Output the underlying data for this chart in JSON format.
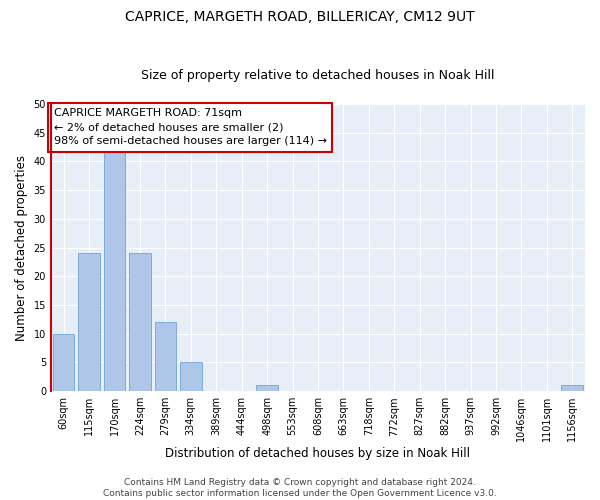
{
  "title1": "CAPRICE, MARGETH ROAD, BILLERICAY, CM12 9UT",
  "title2": "Size of property relative to detached houses in Noak Hill",
  "xlabel": "Distribution of detached houses by size in Noak Hill",
  "ylabel": "Number of detached properties",
  "categories": [
    "60sqm",
    "115sqm",
    "170sqm",
    "224sqm",
    "279sqm",
    "334sqm",
    "389sqm",
    "444sqm",
    "498sqm",
    "553sqm",
    "608sqm",
    "663sqm",
    "718sqm",
    "772sqm",
    "827sqm",
    "882sqm",
    "937sqm",
    "992sqm",
    "1046sqm",
    "1101sqm",
    "1156sqm"
  ],
  "values": [
    10,
    24,
    42,
    24,
    12,
    5,
    0,
    0,
    1,
    0,
    0,
    0,
    0,
    0,
    0,
    0,
    0,
    0,
    0,
    0,
    1
  ],
  "bar_color": "#aec6e8",
  "bar_edge_color": "#5b9bd5",
  "annotation_text": "CAPRICE MARGETH ROAD: 71sqm\n← 2% of detached houses are smaller (2)\n98% of semi-detached houses are larger (114) →",
  "annotation_box_color": "#ffffff",
  "annotation_box_edge_color": "#cc0000",
  "vline_color": "#cc0000",
  "vline_x": -0.08,
  "ylim": [
    0,
    50
  ],
  "yticks": [
    0,
    5,
    10,
    15,
    20,
    25,
    30,
    35,
    40,
    45,
    50
  ],
  "background_color": "#e8eef7",
  "grid_color": "#ffffff",
  "footer_line1": "Contains HM Land Registry data © Crown copyright and database right 2024.",
  "footer_line2": "Contains public sector information licensed under the Open Government Licence v3.0.",
  "title1_fontsize": 10,
  "title2_fontsize": 9,
  "xlabel_fontsize": 8.5,
  "ylabel_fontsize": 8.5,
  "tick_fontsize": 7,
  "annotation_fontsize": 8,
  "footer_fontsize": 6.5
}
